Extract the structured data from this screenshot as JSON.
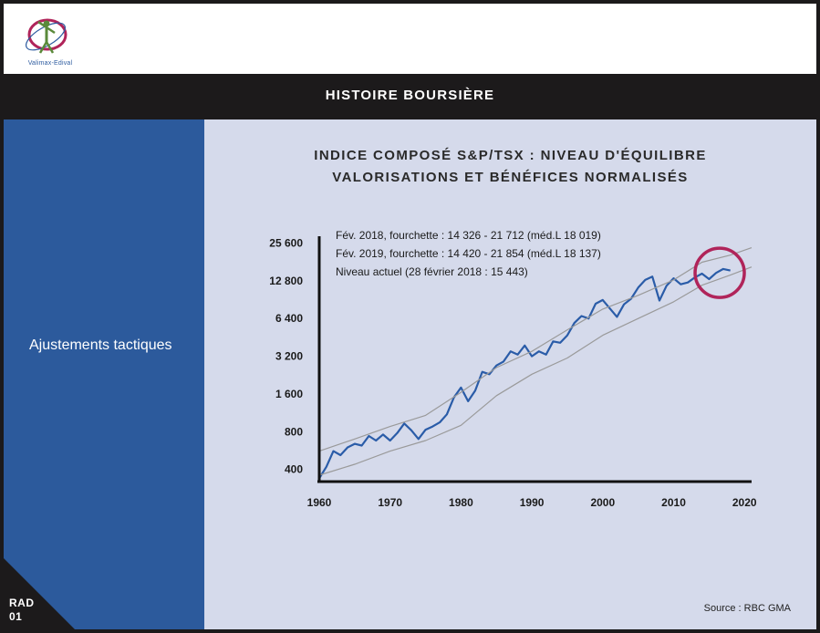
{
  "logo": {
    "text": "Valimax-Edival"
  },
  "header": {
    "title": "HISTOIRE BOURSIÈRE"
  },
  "sidebar": {
    "label": "Ajustements tactiques"
  },
  "corner": {
    "line1": "RAD",
    "line2": "01"
  },
  "source": "Source : RBC GMA",
  "colors": {
    "series": "#2a5ca8",
    "band": "#9a9a9a",
    "circle": "#b0245a",
    "sidebar": "#2c5a9c",
    "panel": "#d5daeb"
  },
  "chart_data": {
    "type": "line",
    "title": [
      "INDICE COMPOSÉ S&P/TSX : NIVEAU D'ÉQUILIBRE",
      "VALORISATIONS ET BÉNÉFICES NORMALISÉS"
    ],
    "y_scale": "log2",
    "ylim": [
      320,
      30000
    ],
    "yticks": [
      400,
      800,
      1600,
      3200,
      6400,
      12800,
      25600
    ],
    "ytick_labels": [
      "400",
      "800",
      "1 600",
      "3 200",
      "6 400",
      "12 800",
      "25 600"
    ],
    "xlim": [
      1960,
      2021
    ],
    "xticks": [
      1960,
      1970,
      1980,
      1990,
      2000,
      2010,
      2020
    ],
    "annotations": [
      "Fév. 2018, fourchette : 14 326 - 21 712 (méd.L 18 019)",
      "Fév. 2019, fourchette : 14 420 - 21 854 (méd.L 18 137)",
      "Niveau actuel (28 février 2018 : 15 443)"
    ],
    "series": [
      {
        "role": "index",
        "points": [
          [
            1960,
            340
          ],
          [
            1961,
            420
          ],
          [
            1962,
            560
          ],
          [
            1963,
            520
          ],
          [
            1964,
            600
          ],
          [
            1965,
            640
          ],
          [
            1966,
            620
          ],
          [
            1967,
            740
          ],
          [
            1968,
            680
          ],
          [
            1969,
            760
          ],
          [
            1970,
            680
          ],
          [
            1971,
            780
          ],
          [
            1972,
            930
          ],
          [
            1973,
            820
          ],
          [
            1974,
            700
          ],
          [
            1975,
            830
          ],
          [
            1976,
            880
          ],
          [
            1977,
            950
          ],
          [
            1978,
            1100
          ],
          [
            1979,
            1500
          ],
          [
            1980,
            1800
          ],
          [
            1981,
            1400
          ],
          [
            1982,
            1700
          ],
          [
            1983,
            2400
          ],
          [
            1984,
            2300
          ],
          [
            1985,
            2700
          ],
          [
            1986,
            2900
          ],
          [
            1987,
            3500
          ],
          [
            1988,
            3300
          ],
          [
            1989,
            3900
          ],
          [
            1990,
            3200
          ],
          [
            1991,
            3500
          ],
          [
            1992,
            3300
          ],
          [
            1993,
            4200
          ],
          [
            1994,
            4100
          ],
          [
            1995,
            4700
          ],
          [
            1996,
            5900
          ],
          [
            1997,
            6700
          ],
          [
            1998,
            6400
          ],
          [
            1999,
            8400
          ],
          [
            2000,
            9000
          ],
          [
            2001,
            7700
          ],
          [
            2002,
            6600
          ],
          [
            2003,
            8300
          ],
          [
            2004,
            9200
          ],
          [
            2005,
            11300
          ],
          [
            2006,
            13000
          ],
          [
            2007,
            13800
          ],
          [
            2008,
            8900
          ],
          [
            2009,
            11700
          ],
          [
            2010,
            13400
          ],
          [
            2011,
            12000
          ],
          [
            2012,
            12400
          ],
          [
            2013,
            13600
          ],
          [
            2014,
            14600
          ],
          [
            2015,
            13200
          ],
          [
            2016,
            14800
          ],
          [
            2017,
            15900
          ],
          [
            2018,
            15443
          ]
        ]
      },
      {
        "role": "upper-band",
        "points": [
          [
            1960,
            560
          ],
          [
            1965,
            700
          ],
          [
            1970,
            880
          ],
          [
            1975,
            1080
          ],
          [
            1980,
            1650
          ],
          [
            1985,
            2600
          ],
          [
            1990,
            3500
          ],
          [
            1995,
            5200
          ],
          [
            2000,
            7600
          ],
          [
            2005,
            9800
          ],
          [
            2010,
            13000
          ],
          [
            2014,
            18000
          ],
          [
            2018,
            20500
          ],
          [
            2021,
            23500
          ]
        ]
      },
      {
        "role": "lower-band",
        "points": [
          [
            1960,
            360
          ],
          [
            1965,
            440
          ],
          [
            1970,
            560
          ],
          [
            1975,
            680
          ],
          [
            1980,
            900
          ],
          [
            1985,
            1550
          ],
          [
            1990,
            2300
          ],
          [
            1995,
            3100
          ],
          [
            2000,
            4700
          ],
          [
            2005,
            6400
          ],
          [
            2010,
            8700
          ],
          [
            2014,
            11800
          ],
          [
            2018,
            14200
          ],
          [
            2021,
            16500
          ]
        ]
      }
    ],
    "highlight": {
      "x": 2016.5,
      "y": 14800
    }
  }
}
